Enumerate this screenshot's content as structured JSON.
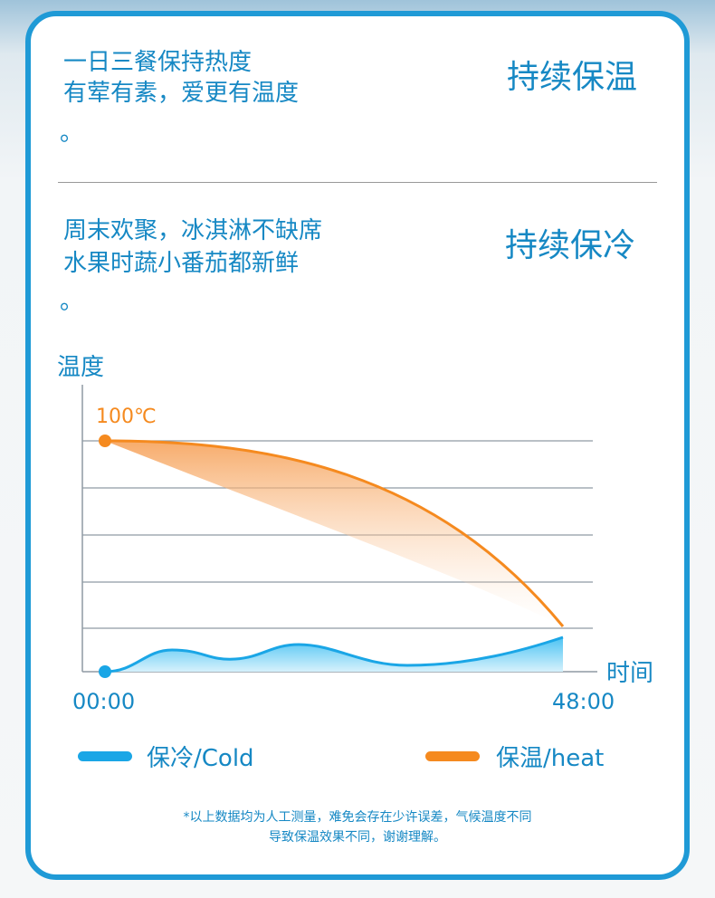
{
  "sections": [
    {
      "lines": [
        "一日三餐保持热度",
        "有荤有素，爱更有温度",
        "。"
      ],
      "heading": "持续保温"
    },
    {
      "lines": [
        "周末欢聚，冰淇淋不缺席",
        "水果时蔬小番茄都新鲜",
        "。"
      ],
      "heading": "持续保冷"
    }
  ],
  "chart": {
    "y_label": "温度",
    "x_label": "时间",
    "start_temp_label": "100℃",
    "x_start": "00:00",
    "x_end": "48:00"
  },
  "legend": [
    "保冷/Cold",
    "保温/heat"
  ],
  "footnote": [
    "*以上数据均为人工测量，难免会存在少许误差，气候温度不同",
    "导致保温效果不同，谢谢理解。"
  ]
}
